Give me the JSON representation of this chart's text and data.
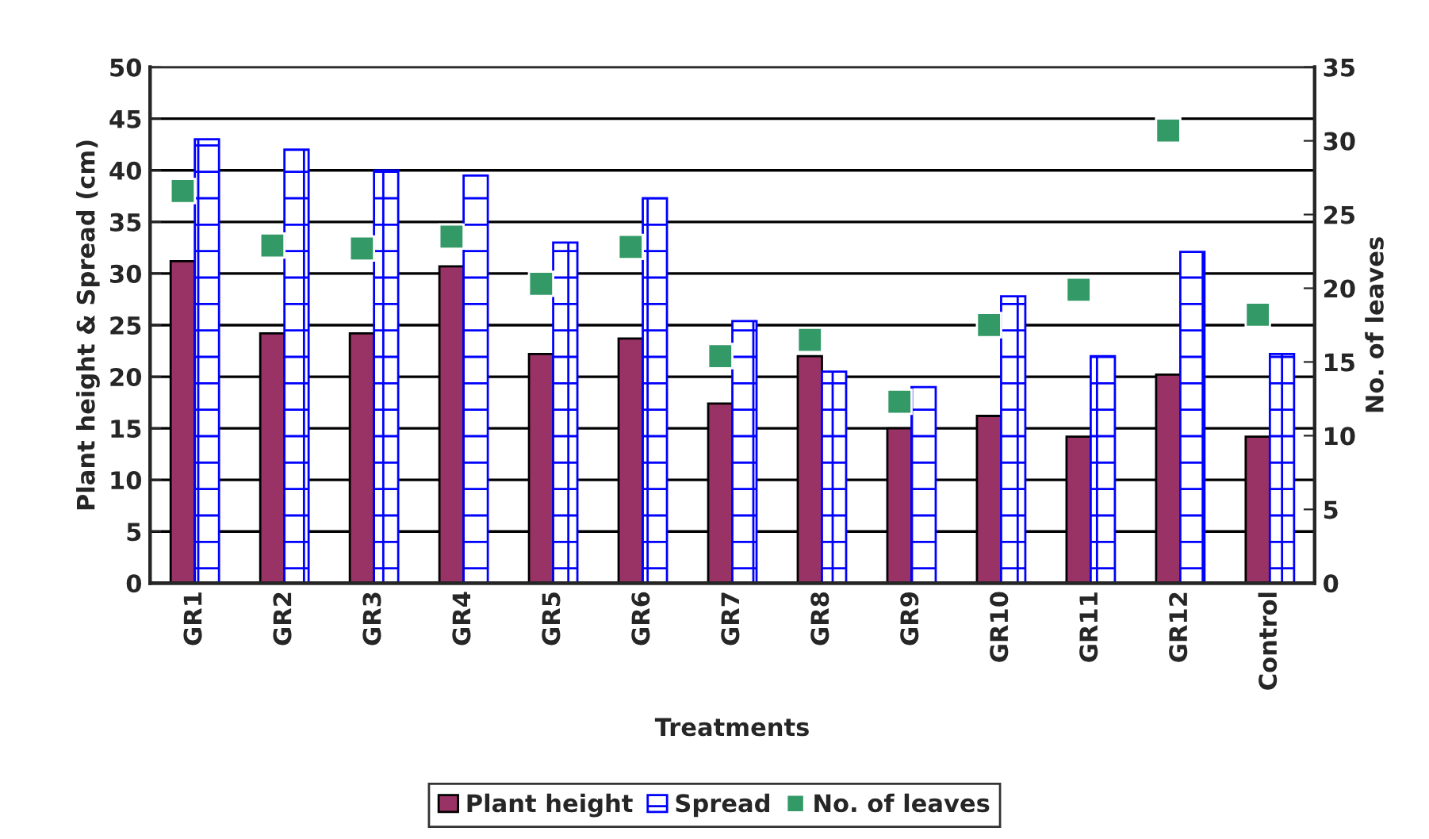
{
  "chart_data": {
    "type": "bar",
    "xlabel": "Treatments",
    "ylabel": "Plant height & Spread (cm)",
    "y2label": "No. of leaves",
    "categories": [
      "GR1",
      "GR2",
      "GR3",
      "GR4",
      "GR5",
      "GR6",
      "GR7",
      "GR8",
      "GR9",
      "GR10",
      "GR11",
      "GR12",
      "Control"
    ],
    "series": [
      {
        "name": "Plant height",
        "color": "#993366",
        "values": [
          31.2,
          24.2,
          24.2,
          30.7,
          22.2,
          23.7,
          17.4,
          22.0,
          15.0,
          16.2,
          14.2,
          20.2,
          14.2
        ]
      },
      {
        "name": "Spread",
        "color": "#0000ff",
        "values": [
          43,
          42,
          40,
          39.5,
          33,
          37.3,
          25.4,
          20.5,
          19,
          27.8,
          22,
          32.1,
          22.2
        ]
      },
      {
        "name": "No. of leaves",
        "type": "scatter",
        "axis": "y2",
        "color": "#339966",
        "marker": "square",
        "values": [
          26.6,
          22.9,
          22.7,
          23.5,
          20.3,
          22.8,
          15.4,
          16.5,
          12.3,
          17.5,
          19.9,
          30.7,
          18.2
        ]
      }
    ],
    "ylim": [
      0,
      50
    ],
    "yticks": [
      0,
      5,
      10,
      15,
      20,
      25,
      30,
      35,
      40,
      45,
      50
    ],
    "y2lim": [
      0,
      35
    ],
    "y2ticks": [
      0,
      5,
      10,
      15,
      20,
      25,
      30,
      35
    ],
    "grid": "y",
    "legend": "bottom"
  }
}
